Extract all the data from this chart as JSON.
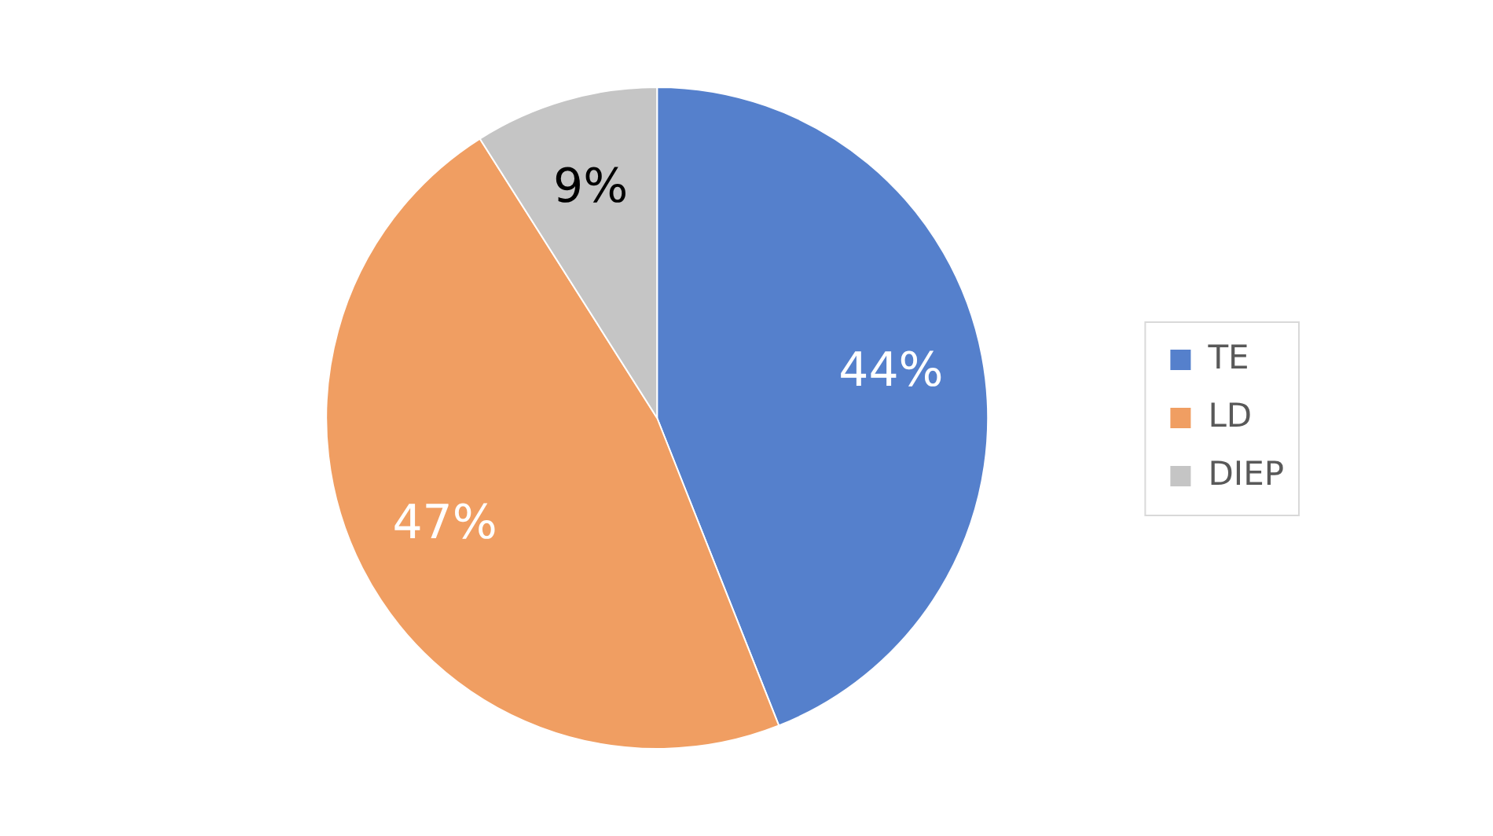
{
  "chart_data": {
    "type": "pie",
    "categories": [
      "TE",
      "LD",
      "DIEP"
    ],
    "values": [
      44,
      47,
      9
    ],
    "colors": [
      "#5580cc",
      "#f09e62",
      "#c5c5c5"
    ],
    "value_labels": [
      "44%",
      "47%",
      "9%"
    ],
    "legend": "right"
  }
}
